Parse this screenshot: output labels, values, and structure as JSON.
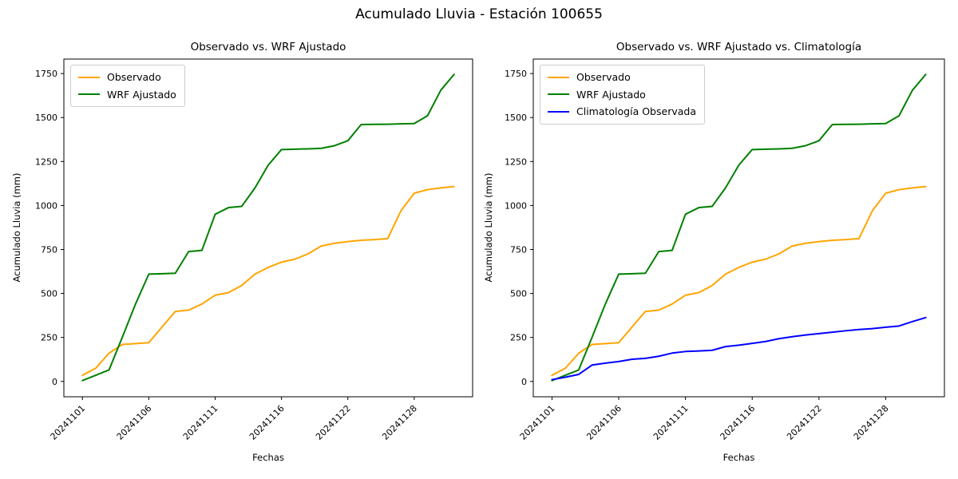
{
  "figure": {
    "suptitle": "Acumulado Lluvia - Estación 100655",
    "background_color": "#ffffff",
    "text_color": "#000000"
  },
  "chart_data": [
    {
      "id": "observado-vs-wrf",
      "type": "line",
      "title": "Observado vs. WRF Ajustado",
      "xlabel": "Fechas",
      "ylabel": "Acumulado Lluvia (mm)",
      "n_points": 29,
      "x_tick_indices": [
        0,
        5,
        10,
        15,
        20,
        25
      ],
      "x_tick_labels": [
        "20241101",
        "20241106",
        "20241111",
        "20241116",
        "20241122",
        "20241128"
      ],
      "y_ticks": [
        0,
        250,
        500,
        750,
        1000,
        1250,
        1500,
        1750
      ],
      "ylim_data": [
        0,
        1745
      ],
      "grid": false,
      "legend_position": "upper left",
      "series": [
        {
          "name": "Observado",
          "color": "#FFA500",
          "values": [
            35,
            75,
            160,
            210,
            215,
            220,
            310,
            398,
            405,
            440,
            490,
            505,
            545,
            610,
            648,
            678,
            695,
            725,
            770,
            785,
            795,
            802,
            806,
            812,
            970,
            1070,
            1090,
            1100,
            1108
          ]
        },
        {
          "name": "WRF Ajustado",
          "color": "#008000",
          "values": [
            5,
            35,
            65,
            250,
            440,
            610,
            612,
            615,
            738,
            745,
            950,
            988,
            995,
            1100,
            1230,
            1318,
            1320,
            1322,
            1325,
            1340,
            1368,
            1460,
            1461,
            1462,
            1464,
            1466,
            1510,
            1655,
            1745
          ]
        }
      ]
    },
    {
      "id": "observado-vs-wrf-vs-climatologia",
      "type": "line",
      "title": "Observado vs. WRF Ajustado vs. Climatología",
      "xlabel": "Fechas",
      "ylabel": "Acumulado Lluvia (mm)",
      "n_points": 29,
      "x_tick_indices": [
        0,
        5,
        10,
        15,
        20,
        25
      ],
      "x_tick_labels": [
        "20241101",
        "20241106",
        "20241111",
        "20241116",
        "20241122",
        "20241128"
      ],
      "y_ticks": [
        0,
        250,
        500,
        750,
        1000,
        1250,
        1500,
        1750
      ],
      "ylim_data": [
        0,
        1745
      ],
      "grid": false,
      "legend_position": "upper left",
      "series": [
        {
          "name": "Observado",
          "color": "#FFA500",
          "values": [
            35,
            75,
            160,
            210,
            215,
            220,
            310,
            398,
            405,
            440,
            490,
            505,
            545,
            610,
            648,
            678,
            695,
            725,
            770,
            785,
            795,
            802,
            806,
            812,
            970,
            1070,
            1090,
            1100,
            1108
          ]
        },
        {
          "name": "WRF Ajustado",
          "color": "#008000",
          "values": [
            5,
            35,
            65,
            250,
            440,
            610,
            612,
            615,
            738,
            745,
            950,
            988,
            995,
            1100,
            1230,
            1318,
            1320,
            1322,
            1325,
            1340,
            1368,
            1460,
            1461,
            1462,
            1464,
            1466,
            1510,
            1655,
            1745
          ]
        },
        {
          "name": "Climatología Observada",
          "color": "#0000FF",
          "values": [
            10,
            24,
            40,
            93,
            104,
            113,
            126,
            131,
            143,
            161,
            170,
            173,
            177,
            198,
            206,
            216,
            227,
            243,
            254,
            264,
            272,
            280,
            288,
            295,
            300,
            308,
            315,
            340,
            363
          ]
        }
      ]
    }
  ]
}
